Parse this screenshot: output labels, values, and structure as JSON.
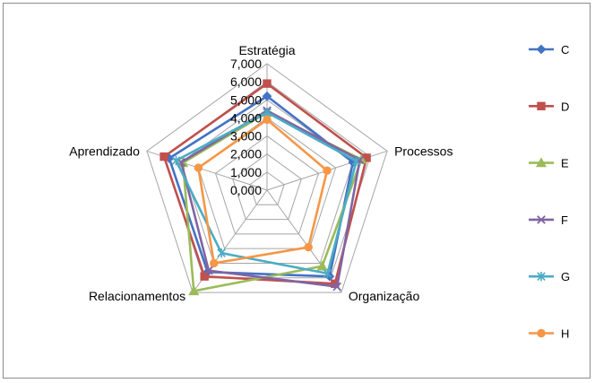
{
  "chart_data": {
    "type": "radar",
    "categories": [
      "Estratégia",
      "Processos",
      "Organização",
      "Relacionamentos",
      "Aprendizado"
    ],
    "rlim": [
      0,
      7
    ],
    "ticks": [
      "0,000",
      "1,000",
      "2,000",
      "3,000",
      "4,000",
      "5,000",
      "6,000",
      "7,000"
    ],
    "grid": true,
    "legend_position": "right",
    "series": [
      {
        "name": "C",
        "color": "#4472C4",
        "marker": "diamond",
        "values": [
          5.2,
          5.0,
          5.9,
          5.6,
          5.7
        ]
      },
      {
        "name": "D",
        "color": "#C0504D",
        "marker": "square",
        "values": [
          5.9,
          5.8,
          6.4,
          5.9,
          6.0
        ]
      },
      {
        "name": "E",
        "color": "#9BBB59",
        "marker": "triangle",
        "values": [
          4.3,
          5.5,
          5.2,
          6.9,
          4.9
        ]
      },
      {
        "name": "F",
        "color": "#8064A2",
        "marker": "x",
        "values": [
          4.4,
          5.4,
          6.6,
          5.5,
          5.0
        ]
      },
      {
        "name": "G",
        "color": "#4BACC6",
        "marker": "star",
        "values": [
          4.3,
          5.2,
          5.7,
          4.3,
          5.3
        ]
      },
      {
        "name": "H",
        "color": "#F79646",
        "marker": "circle",
        "values": [
          3.9,
          3.5,
          3.9,
          5.0,
          4.0
        ]
      }
    ]
  }
}
